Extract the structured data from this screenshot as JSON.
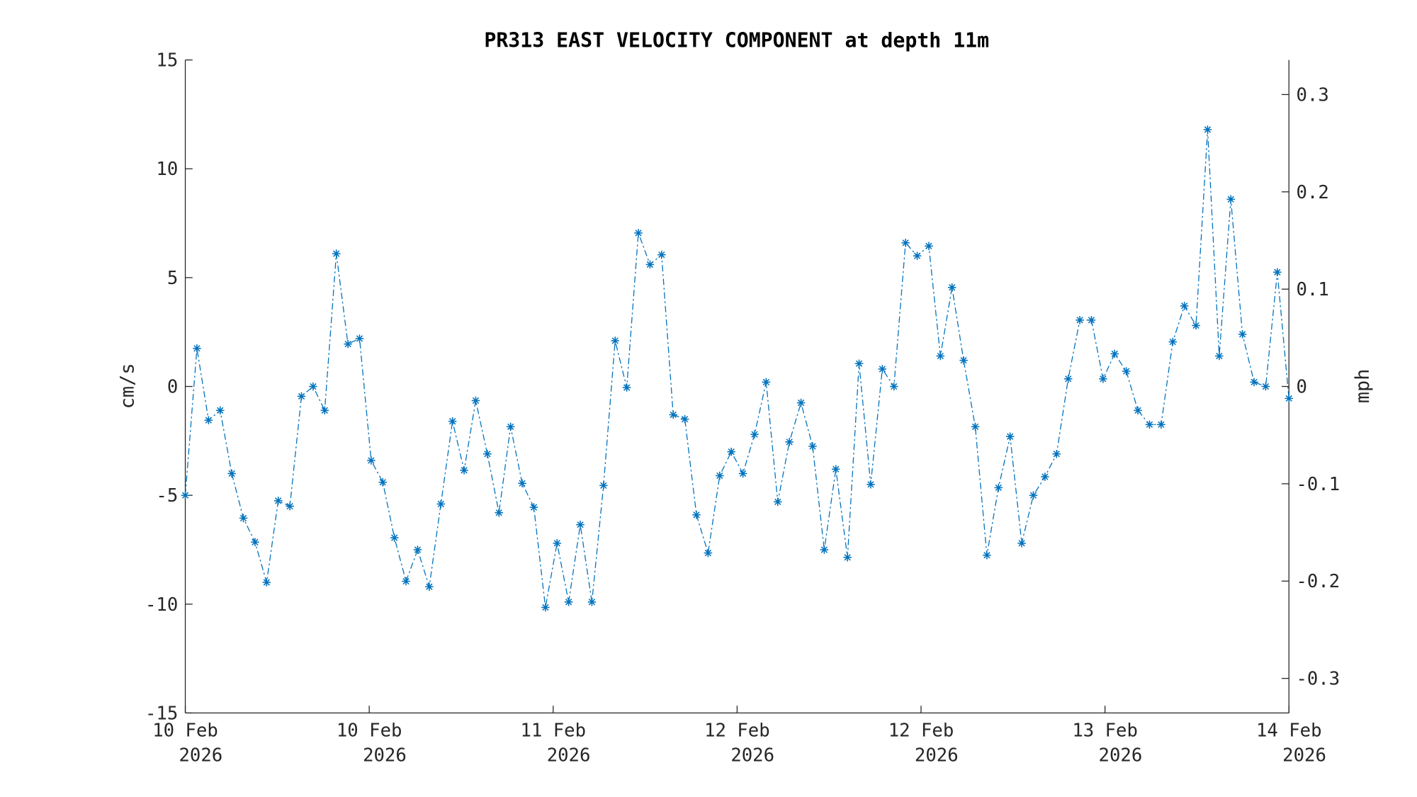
{
  "chart_data": {
    "type": "line",
    "title": "PR313 EAST VELOCITY COMPONENT at depth 11m",
    "xlabel": "",
    "ylabel": "cm/s",
    "ylabel_right": "mph",
    "ylim": [
      -15,
      15
    ],
    "ylim_right_note": "mph = cm/s / 44.704",
    "yticks": [
      "15",
      "10",
      "5",
      "0",
      "-5",
      "-10",
      "-15"
    ],
    "ytick_values": [
      15,
      10,
      5,
      0,
      -5,
      -10,
      -15
    ],
    "yticks_right": [
      "0.3",
      "0.2",
      "0.1",
      "0",
      "-0.1",
      "-0.2",
      "-0.3"
    ],
    "ytick_right_values": [
      0.3,
      0.2,
      0.1,
      0,
      -0.1,
      -0.2,
      -0.3
    ],
    "xlim": [
      0,
      95
    ],
    "xticks": [
      {
        "day": "10 Feb",
        "year": "2026"
      },
      {
        "day": "10 Feb",
        "year": "2026"
      },
      {
        "day": "11 Feb",
        "year": "2026"
      },
      {
        "day": "12 Feb",
        "year": "2026"
      },
      {
        "day": "12 Feb",
        "year": "2026"
      },
      {
        "day": "13 Feb",
        "year": "2026"
      },
      {
        "day": "14 Feb",
        "year": "2026"
      }
    ],
    "grid": false,
    "series": [
      {
        "name": "east velocity",
        "color": "#0072BD",
        "marker": "asterisk",
        "linestyle": "dash-dot",
        "values": [
          -5.0,
          1.75,
          -1.55,
          -1.1,
          -4.0,
          -6.05,
          -7.15,
          -9.0,
          -5.25,
          -5.5,
          -0.45,
          0,
          -1.1,
          6.1,
          1.95,
          2.2,
          -3.4,
          -4.4,
          -6.95,
          -8.95,
          -7.5,
          -9.2,
          -5.4,
          -1.6,
          -3.85,
          -0.65,
          -3.1,
          -5.8,
          -1.85,
          -4.45,
          -5.55,
          -10.15,
          -7.2,
          -9.9,
          -6.35,
          -9.9,
          -4.55,
          2.1,
          -0.05,
          7.05,
          5.6,
          6.05,
          -1.3,
          -1.5,
          -5.9,
          -7.65,
          -4.1,
          -3.0,
          -4.0,
          -2.2,
          0.2,
          -5.3,
          -2.55,
          -0.75,
          -2.75,
          -7.5,
          -3.8,
          -7.85,
          1.05,
          -4.5,
          0.8,
          0,
          6.6,
          6.0,
          6.45,
          1.4,
          4.55,
          1.2,
          -1.85,
          -7.75,
          -4.65,
          -2.3,
          -7.2,
          -5.0,
          -4.15,
          -3.1,
          0.35,
          3.05,
          3.05,
          0.35,
          1.5,
          0.7,
          -1.1,
          -1.75,
          -1.75,
          2.05,
          3.7,
          2.8,
          11.8,
          1.4,
          8.6,
          2.4,
          0.2,
          0,
          5.25,
          -0.55
        ]
      }
    ]
  }
}
